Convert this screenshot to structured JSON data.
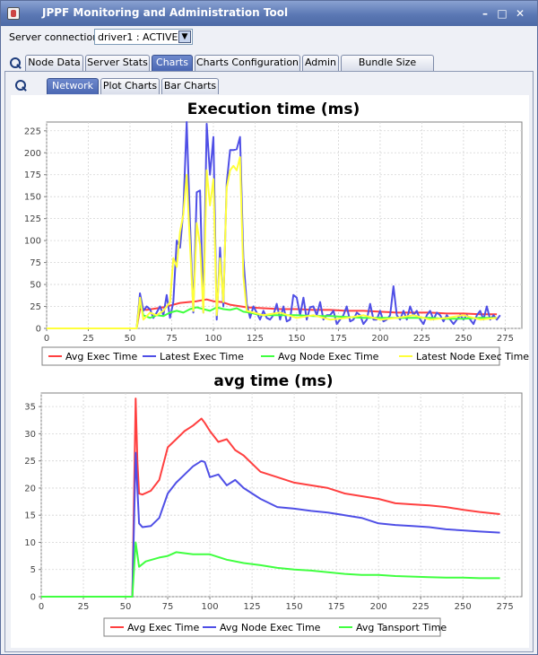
{
  "window": {
    "title": "JPPF Monitoring and Administration Tool",
    "icon": "java-cup-icon"
  },
  "connection": {
    "label": "Server connection",
    "value": "driver1 : ACTIVE"
  },
  "main_tabs": [
    {
      "label": "Node Data",
      "active": false
    },
    {
      "label": "Server Stats",
      "active": false
    },
    {
      "label": "Charts",
      "active": true
    },
    {
      "label": "Charts Configuration",
      "active": false
    },
    {
      "label": "Admin",
      "active": false
    },
    {
      "label": "Bundle Size Tuning",
      "active": false
    }
  ],
  "sub_tabs": [
    {
      "label": "Network",
      "active": true
    },
    {
      "label": "Plot Charts",
      "active": false
    },
    {
      "label": "Bar Charts",
      "active": false
    }
  ],
  "chart_data": [
    {
      "type": "line",
      "title": "Execution time (ms)",
      "xlim": [
        0,
        285
      ],
      "ylim": [
        0,
        235
      ],
      "xticks": [
        0,
        25,
        50,
        75,
        100,
        125,
        150,
        175,
        200,
        225,
        250,
        275
      ],
      "yticks": [
        0,
        25,
        50,
        75,
        100,
        125,
        150,
        175,
        200,
        225
      ],
      "legend": "bottom",
      "series": [
        {
          "name": "Avg Exec Time",
          "color": "#ff4040",
          "x": [
            0,
            54,
            56,
            60,
            70,
            80,
            90,
            96,
            100,
            105,
            110,
            120,
            130,
            140,
            150,
            160,
            170,
            180,
            190,
            200,
            210,
            220,
            230,
            240,
            250,
            260,
            270
          ],
          "y": [
            0,
            0,
            22,
            21,
            24,
            29,
            31,
            33,
            31,
            30,
            27,
            24,
            23,
            22,
            22,
            21,
            21,
            20,
            20,
            19,
            18,
            18,
            18,
            17,
            17,
            16,
            16
          ]
        },
        {
          "name": "Latest Exec Time",
          "color": "#4f4fe6",
          "x": [
            0,
            54,
            56,
            58,
            60,
            62,
            64,
            66,
            68,
            70,
            72,
            74,
            76,
            78,
            80,
            82,
            84,
            86,
            88,
            90,
            92,
            94,
            96,
            98,
            100,
            102,
            104,
            106,
            108,
            110,
            112,
            114,
            116,
            118,
            120,
            122,
            124,
            126,
            128,
            130,
            132,
            134,
            136,
            138,
            140,
            142,
            144,
            146,
            148,
            150,
            152,
            154,
            156,
            158,
            160,
            162,
            164,
            166,
            168,
            170,
            172,
            174,
            176,
            178,
            180,
            182,
            184,
            186,
            188,
            190,
            192,
            194,
            196,
            198,
            200,
            202,
            204,
            206,
            208,
            210,
            212,
            214,
            216,
            218,
            220,
            222,
            224,
            226,
            228,
            230,
            232,
            234,
            236,
            238,
            240,
            242,
            244,
            246,
            248,
            250,
            252,
            254,
            256,
            258,
            260,
            262,
            264,
            266,
            268,
            270,
            272
          ],
          "y": [
            0,
            0,
            40,
            20,
            25,
            22,
            12,
            18,
            25,
            15,
            38,
            12,
            30,
            100,
            92,
            135,
            235,
            120,
            18,
            155,
            157,
            18,
            233,
            175,
            218,
            10,
            92,
            25,
            165,
            203,
            203,
            204,
            218,
            80,
            28,
            12,
            25,
            18,
            10,
            20,
            12,
            10,
            15,
            28,
            10,
            25,
            8,
            10,
            38,
            35,
            15,
            35,
            10,
            24,
            25,
            15,
            30,
            10,
            15,
            15,
            20,
            5,
            10,
            15,
            25,
            8,
            10,
            18,
            15,
            5,
            10,
            28,
            10,
            10,
            20,
            8,
            10,
            15,
            48,
            15,
            10,
            20,
            10,
            25,
            15,
            20,
            10,
            5,
            15,
            20,
            10,
            18,
            15,
            8,
            15,
            10,
            5,
            10,
            15,
            10,
            15,
            10,
            5,
            15,
            20,
            10,
            25,
            10,
            15,
            10,
            15
          ]
        },
        {
          "name": "Avg Node Exec Time",
          "color": "#40ff40",
          "x": [
            0,
            54,
            56,
            58,
            62,
            66,
            70,
            74,
            78,
            82,
            86,
            90,
            94,
            98,
            102,
            106,
            110,
            114,
            118,
            122,
            126,
            130,
            140,
            150,
            160,
            170,
            180,
            190,
            200,
            210,
            220,
            230,
            240,
            250,
            260,
            270
          ],
          "y": [
            0,
            0,
            30,
            15,
            12,
            15,
            14,
            18,
            20,
            18,
            22,
            24,
            22,
            20,
            24,
            22,
            21,
            23,
            19,
            18,
            16,
            15,
            15,
            15,
            14,
            14,
            13,
            12,
            12,
            12,
            12,
            12,
            11,
            11,
            12,
            12
          ]
        },
        {
          "name": "Latest Node Exec Time",
          "color": "#ffff3a",
          "x": [
            0,
            54,
            56,
            58,
            62,
            66,
            70,
            74,
            76,
            78,
            80,
            82,
            84,
            86,
            88,
            90,
            92,
            94,
            96,
            98,
            100,
            102,
            104,
            106,
            108,
            110,
            112,
            114,
            116,
            118,
            120,
            130,
            140,
            150,
            160,
            170,
            180,
            190,
            200,
            210,
            220,
            230,
            240,
            250,
            260,
            270
          ],
          "y": [
            0,
            0,
            35,
            10,
            18,
            15,
            20,
            30,
            80,
            70,
            110,
            130,
            175,
            95,
            20,
            120,
            95,
            18,
            180,
            140,
            170,
            15,
            80,
            30,
            160,
            180,
            185,
            180,
            195,
            60,
            20,
            15,
            18,
            12,
            15,
            10,
            12,
            15,
            10,
            12,
            15,
            10,
            12,
            15,
            10,
            12
          ]
        }
      ]
    },
    {
      "type": "line",
      "title": "avg time (ms)",
      "xlim": [
        0,
        285
      ],
      "ylim": [
        0,
        37.5
      ],
      "xticks": [
        0,
        25,
        50,
        75,
        100,
        125,
        150,
        175,
        200,
        225,
        250,
        275
      ],
      "yticks": [
        0,
        5,
        10,
        15,
        20,
        25,
        30,
        35
      ],
      "legend": "bottom",
      "series": [
        {
          "name": "Avg Exec Time",
          "color": "#ff4040",
          "x": [
            0,
            54,
            56,
            57,
            58,
            60,
            65,
            70,
            75,
            80,
            85,
            90,
            95,
            97,
            100,
            105,
            110,
            115,
            120,
            130,
            140,
            150,
            160,
            170,
            180,
            190,
            200,
            210,
            220,
            230,
            240,
            250,
            260,
            272
          ],
          "y": [
            0,
            0,
            36.5,
            25,
            19,
            18.8,
            19.5,
            21.5,
            27.5,
            29,
            30.5,
            31.5,
            32.8,
            32,
            30.5,
            28.5,
            29,
            27,
            26,
            23,
            22,
            21,
            20.5,
            20,
            19,
            18.5,
            18,
            17.2,
            17,
            16.8,
            16.5,
            16,
            15.6,
            15.2
          ]
        },
        {
          "name": "Avg Node Exec Time",
          "color": "#4f4fe6",
          "x": [
            0,
            54,
            56,
            58,
            60,
            65,
            70,
            75,
            80,
            85,
            90,
            95,
            97,
            100,
            105,
            110,
            115,
            120,
            130,
            140,
            150,
            160,
            170,
            180,
            190,
            200,
            210,
            220,
            230,
            240,
            250,
            260,
            272
          ],
          "y": [
            0,
            0,
            26.5,
            13.5,
            12.8,
            13,
            14.5,
            19,
            21,
            22.5,
            24,
            25,
            24.8,
            22,
            22.5,
            20.5,
            21.5,
            20,
            18,
            16.5,
            16.2,
            15.8,
            15.5,
            15,
            14.5,
            13.5,
            13.2,
            13,
            12.8,
            12.4,
            12.2,
            12,
            11.8
          ]
        },
        {
          "name": "Avg Tansport Time",
          "color": "#40ff40",
          "x": [
            0,
            54,
            56,
            58,
            62,
            70,
            75,
            80,
            90,
            100,
            110,
            120,
            130,
            140,
            150,
            160,
            170,
            180,
            190,
            200,
            210,
            220,
            230,
            240,
            250,
            260,
            272
          ],
          "y": [
            0,
            0,
            10,
            5.5,
            6.5,
            7.2,
            7.5,
            8.2,
            7.8,
            7.8,
            6.8,
            6.2,
            5.8,
            5.3,
            5,
            4.8,
            4.5,
            4.2,
            4,
            4,
            3.8,
            3.7,
            3.6,
            3.5,
            3.5,
            3.4,
            3.4
          ]
        }
      ]
    }
  ]
}
